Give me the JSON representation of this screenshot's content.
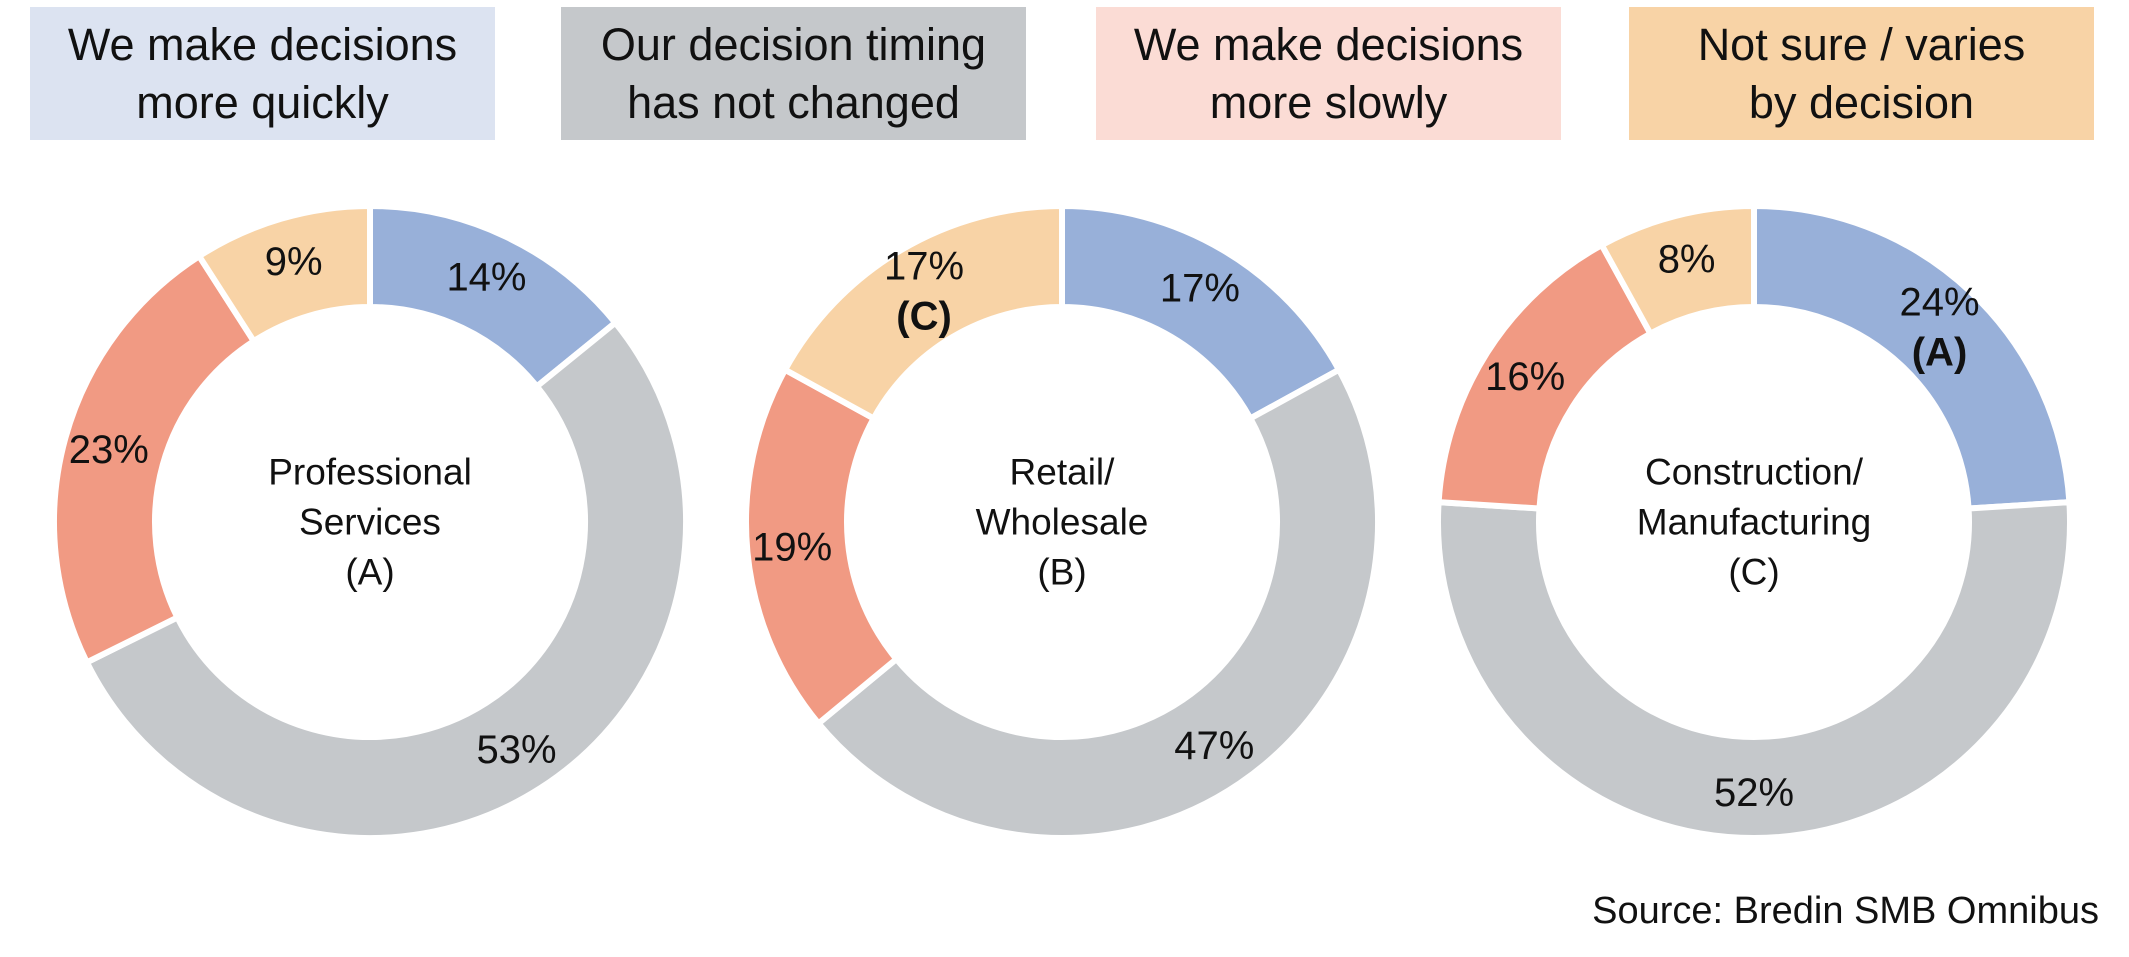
{
  "legend": [
    {
      "lines": [
        "We make decisions",
        "more quickly"
      ],
      "color": "#DCE3F1"
    },
    {
      "lines": [
        "Our decision timing",
        "has not changed"
      ],
      "color": "#C5C8CB"
    },
    {
      "lines": [
        "We make decisions",
        "more slowly"
      ],
      "color": "#FBDCD5"
    },
    {
      "lines": [
        "Not sure / varies",
        "by decision"
      ],
      "color": "#F8D3A6"
    }
  ],
  "series_colors": [
    "#98B0D9",
    "#C5C8CB",
    "#F19A83",
    "#F8D3A6"
  ],
  "source": "Source: Bredin SMB Omnibus",
  "chart_data": [
    {
      "type": "pie",
      "variant": "donut",
      "center_label": [
        "Professional",
        "Services",
        "(A)"
      ],
      "categories": [
        "We make decisions more quickly",
        "Our decision timing has not changed",
        "We make decisions more slowly",
        "Not sure / varies by decision"
      ],
      "values": [
        14,
        53,
        23,
        9
      ],
      "labels": [
        "14%",
        "53%",
        "23%",
        "9%"
      ],
      "annotations": [
        "",
        "",
        "",
        ""
      ]
    },
    {
      "type": "pie",
      "variant": "donut",
      "center_label": [
        "Retail/",
        "Wholesale",
        "(B)"
      ],
      "categories": [
        "We make decisions more quickly",
        "Our decision timing has not changed",
        "We make decisions more slowly",
        "Not sure / varies by decision"
      ],
      "values": [
        17,
        47,
        19,
        17
      ],
      "labels": [
        "17%",
        "47%",
        "19%",
        "17%"
      ],
      "annotations": [
        "",
        "",
        "",
        "(C)"
      ]
    },
    {
      "type": "pie",
      "variant": "donut",
      "center_label": [
        "Construction/",
        "Manufacturing",
        "(C)"
      ],
      "categories": [
        "We make decisions more quickly",
        "Our decision timing has not changed",
        "We make decisions more slowly",
        "Not sure / varies by decision"
      ],
      "values": [
        24,
        52,
        16,
        8
      ],
      "labels": [
        "24%",
        "52%",
        "16%",
        "8%"
      ],
      "annotations": [
        "(A)",
        "",
        "",
        ""
      ]
    }
  ]
}
